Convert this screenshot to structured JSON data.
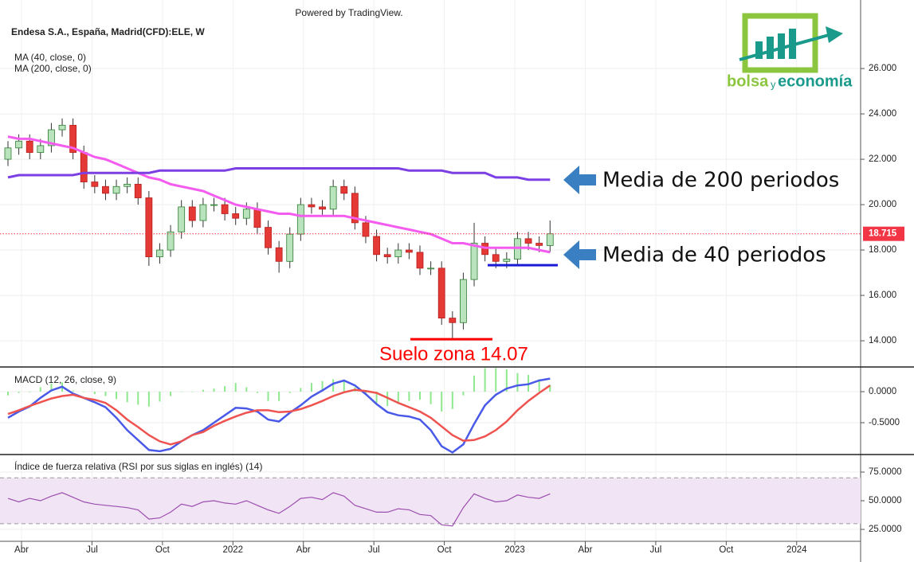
{
  "chart_data": [
    {
      "type": "candlestick",
      "title": "Endesa S.A., España, Madrid(CFD):ELE, W",
      "header": "Powered by TradingView.",
      "x": [
        0,
        2,
        4,
        6,
        8,
        10,
        12,
        14,
        16,
        18,
        20,
        22,
        24,
        26,
        28,
        30,
        32,
        34,
        36,
        38,
        40,
        42,
        44,
        46,
        48,
        50,
        52,
        54,
        56,
        58,
        60,
        62,
        64,
        66,
        68,
        70,
        72,
        74,
        76,
        78,
        80,
        82,
        84,
        86,
        88,
        90,
        92,
        94,
        96,
        98,
        100
      ],
      "open": [
        22.0,
        22.5,
        22.8,
        22.3,
        22.6,
        23.3,
        23.5,
        22.3,
        21.0,
        20.8,
        20.5,
        20.8,
        20.9,
        20.3,
        17.7,
        18.0,
        18.8,
        19.9,
        19.3,
        20.0,
        20.0,
        19.6,
        19.4,
        19.8,
        19.0,
        18.1,
        17.5,
        18.7,
        20.0,
        19.9,
        19.8,
        20.8,
        20.5,
        19.2,
        18.6,
        17.8,
        17.7,
        18.0,
        17.9,
        17.2,
        17.2,
        15.0,
        14.8,
        16.7,
        18.3,
        17.8,
        17.5,
        17.6,
        18.5,
        18.3,
        18.2
      ],
      "high": [
        22.8,
        23.1,
        23.1,
        22.9,
        23.6,
        23.8,
        23.8,
        22.6,
        21.3,
        21.1,
        21.1,
        21.2,
        21.2,
        20.6,
        18.3,
        19.1,
        20.2,
        20.2,
        20.3,
        20.3,
        20.3,
        19.9,
        20.1,
        20.1,
        19.3,
        18.4,
        19.0,
        20.3,
        20.3,
        20.2,
        21.1,
        21.1,
        20.8,
        19.5,
        18.9,
        18.1,
        18.3,
        18.3,
        18.2,
        17.5,
        17.5,
        15.3,
        17.0,
        19.2,
        18.6,
        18.1,
        17.9,
        18.8,
        18.8,
        18.6,
        19.3
      ],
      "low": [
        21.7,
        22.2,
        22.0,
        22.0,
        22.3,
        23.0,
        22.0,
        20.7,
        20.5,
        20.2,
        20.2,
        20.5,
        20.0,
        17.3,
        17.4,
        17.7,
        18.5,
        19.0,
        19.0,
        19.7,
        19.3,
        19.1,
        19.1,
        18.7,
        17.8,
        17.0,
        17.2,
        18.4,
        19.6,
        19.5,
        19.5,
        20.2,
        18.9,
        18.3,
        17.5,
        17.4,
        17.4,
        17.6,
        16.9,
        16.9,
        14.7,
        14.1,
        14.5,
        16.4,
        17.5,
        17.2,
        17.2,
        17.3,
        18.0,
        17.9,
        17.9
      ],
      "close": [
        22.5,
        22.8,
        22.3,
        22.6,
        23.3,
        23.5,
        22.3,
        21.0,
        20.8,
        20.5,
        20.8,
        20.9,
        20.3,
        17.7,
        18.0,
        18.8,
        19.9,
        19.3,
        20.0,
        20.0,
        19.6,
        19.4,
        19.8,
        19.0,
        18.1,
        17.5,
        18.7,
        20.0,
        19.9,
        19.8,
        20.8,
        20.5,
        19.2,
        18.6,
        17.8,
        17.7,
        18.0,
        17.9,
        17.2,
        17.2,
        15.0,
        14.8,
        16.7,
        18.3,
        17.8,
        17.5,
        17.6,
        18.5,
        18.3,
        18.2,
        18.715
      ],
      "up_color": "#b9e3bd",
      "down_color": "#e53935",
      "series": [
        {
          "name": "MA (40, close, 0)",
          "color": "#f45cf0",
          "values": [
            23.0,
            22.9,
            22.9,
            22.8,
            22.7,
            22.6,
            22.5,
            22.3,
            22.1,
            22.0,
            21.8,
            21.6,
            21.4,
            21.2,
            21.1,
            20.9,
            20.8,
            20.7,
            20.6,
            20.4,
            20.2,
            20.0,
            19.9,
            19.8,
            19.7,
            19.6,
            19.6,
            19.5,
            19.5,
            19.5,
            19.5,
            19.5,
            19.4,
            19.3,
            19.2,
            19.1,
            19.0,
            18.9,
            18.8,
            18.7,
            18.5,
            18.3,
            18.3,
            18.2,
            18.1,
            18.1,
            18.1,
            18.1,
            18.1,
            18.0,
            17.9
          ]
        },
        {
          "name": "MA (200, close, 0)",
          "color": "#7b3fe4",
          "values": [
            21.2,
            21.3,
            21.3,
            21.3,
            21.3,
            21.3,
            21.3,
            21.4,
            21.4,
            21.4,
            21.4,
            21.4,
            21.4,
            21.4,
            21.5,
            21.5,
            21.5,
            21.5,
            21.5,
            21.5,
            21.5,
            21.6,
            21.6,
            21.6,
            21.6,
            21.6,
            21.6,
            21.6,
            21.6,
            21.6,
            21.6,
            21.6,
            21.6,
            21.6,
            21.6,
            21.6,
            21.6,
            21.5,
            21.5,
            21.5,
            21.5,
            21.4,
            21.4,
            21.4,
            21.4,
            21.2,
            21.2,
            21.2,
            21.1,
            21.1,
            21.1
          ]
        }
      ],
      "last_price": 18.715,
      "last_price_color": "#f23645",
      "support": {
        "value": 17.33,
        "color": "#1a1ad6"
      },
      "floor": {
        "value": 14.07,
        "label": "Suelo zona 14.07",
        "color": "#ff0000"
      },
      "annotations": [
        "Media de 200 periodos",
        "Media de 40 periodos"
      ],
      "logo": [
        "bolsa",
        "y",
        "economía"
      ],
      "xlim": [
        0,
        157
      ],
      "ylim": [
        12.88,
        29.02
      ],
      "yticks": [
        {
          "value": 14,
          "label": "14.000"
        },
        {
          "value": 16,
          "label": "16.000"
        },
        {
          "value": 18,
          "label": "18.000"
        },
        {
          "value": 20,
          "label": "20.000"
        },
        {
          "value": 22,
          "label": "22.000"
        },
        {
          "value": 24,
          "label": "24.000"
        },
        {
          "value": 26,
          "label": "26.000"
        }
      ],
      "grid": true
    },
    {
      "type": "macd",
      "title": "MACD (12, 26, close, 9)",
      "x": [
        0,
        2,
        4,
        6,
        8,
        10,
        12,
        14,
        16,
        18,
        20,
        22,
        24,
        26,
        28,
        30,
        32,
        34,
        36,
        38,
        40,
        42,
        44,
        46,
        48,
        50,
        52,
        54,
        56,
        58,
        60,
        62,
        64,
        66,
        68,
        70,
        72,
        74,
        76,
        78,
        80,
        82,
        84,
        86,
        88,
        90,
        92,
        94,
        96,
        98,
        100
      ],
      "histogram": {
        "color": "#8ee88e",
        "values": [
          -0.06,
          -0.02,
          -0.01,
          0.07,
          0.13,
          0.15,
          0.02,
          0,
          -0.04,
          -0.07,
          -0.12,
          -0.17,
          -0.21,
          -0.24,
          -0.16,
          -0.07,
          0,
          0,
          0.03,
          0.05,
          0.09,
          0.14,
          0.07,
          -0.02,
          -0.15,
          -0.15,
          -0.02,
          0.06,
          0.14,
          0.17,
          0.2,
          0.19,
          0.07,
          -0.05,
          -0.18,
          -0.23,
          -0.2,
          -0.15,
          -0.13,
          -0.2,
          -0.32,
          -0.28,
          -0.06,
          0.26,
          0.38,
          0.38,
          0.36,
          0.3,
          0.27,
          0.2,
          0.11
        ]
      },
      "series": [
        {
          "color": "#4a5ae8",
          "values": [
            -0.42,
            -0.32,
            -0.24,
            -0.1,
            0.02,
            0.08,
            -0.03,
            -0.1,
            -0.17,
            -0.25,
            -0.42,
            -0.62,
            -0.78,
            -0.94,
            -0.96,
            -0.92,
            -0.8,
            -0.7,
            -0.62,
            -0.5,
            -0.38,
            -0.26,
            -0.27,
            -0.32,
            -0.45,
            -0.48,
            -0.34,
            -0.22,
            -0.08,
            0.02,
            0.13,
            0.18,
            0.1,
            -0.04,
            -0.2,
            -0.33,
            -0.38,
            -0.4,
            -0.45,
            -0.62,
            -0.88,
            -0.98,
            -0.85,
            -0.52,
            -0.22,
            -0.05,
            0.05,
            0.1,
            0.12,
            0.18,
            0.21
          ]
        },
        {
          "color": "#ef5350",
          "values": [
            -0.36,
            -0.3,
            -0.23,
            -0.17,
            -0.11,
            -0.07,
            -0.05,
            -0.1,
            -0.13,
            -0.18,
            -0.3,
            -0.45,
            -0.57,
            -0.7,
            -0.8,
            -0.85,
            -0.8,
            -0.7,
            -0.65,
            -0.55,
            -0.47,
            -0.4,
            -0.34,
            -0.3,
            -0.3,
            -0.33,
            -0.32,
            -0.28,
            -0.22,
            -0.15,
            -0.07,
            -0.01,
            0.03,
            0.01,
            -0.02,
            -0.1,
            -0.18,
            -0.25,
            -0.32,
            -0.42,
            -0.56,
            -0.7,
            -0.79,
            -0.78,
            -0.72,
            -0.62,
            -0.48,
            -0.3,
            -0.15,
            -0.02,
            0.1
          ]
        }
      ],
      "xlim": [
        0,
        157
      ],
      "ylim": [
        -1.0,
        0.385
      ],
      "yticks": [
        {
          "value": -0.5,
          "label": "-0.5000"
        },
        {
          "value": 0,
          "label": "0.0000"
        }
      ]
    },
    {
      "type": "rsi",
      "title": "Índice de fuerza relativa (RSI por sus siglas en inglés) (14)",
      "x": [
        0,
        2,
        4,
        6,
        8,
        10,
        12,
        14,
        16,
        18,
        20,
        22,
        24,
        26,
        28,
        30,
        32,
        34,
        36,
        38,
        40,
        42,
        44,
        46,
        48,
        50,
        52,
        54,
        56,
        58,
        60,
        62,
        64,
        66,
        68,
        70,
        72,
        74,
        76,
        78,
        80,
        82,
        84,
        86,
        88,
        90,
        92,
        94,
        96,
        98,
        100
      ],
      "values": [
        52,
        49,
        52,
        50,
        54,
        57,
        53,
        49,
        47,
        46,
        45,
        44,
        42,
        34,
        35,
        40,
        47,
        45,
        49,
        50,
        48,
        47,
        50,
        46,
        42,
        39,
        45,
        52,
        53,
        51,
        57,
        54,
        46,
        43,
        40,
        40,
        43,
        42,
        38,
        37,
        29,
        28,
        44,
        56,
        52,
        49,
        50,
        55,
        53,
        52,
        56
      ],
      "color": "#9c4fb0",
      "band": [
        30,
        70
      ],
      "band_color": "#f1e4f4",
      "xlim": [
        0,
        157
      ],
      "ylim": [
        14.6,
        89.6
      ],
      "yticks": [
        {
          "value": 25,
          "label": "25.0000"
        },
        {
          "value": 50,
          "label": "50.0000"
        },
        {
          "value": 75,
          "label": "75.0000"
        }
      ],
      "xticks": [
        {
          "value": 2.5,
          "label": "Abr"
        },
        {
          "value": 15.5,
          "label": "Jul"
        },
        {
          "value": 28.5,
          "label": "Oct"
        },
        {
          "value": 41.5,
          "label": "2022"
        },
        {
          "value": 54.5,
          "label": "Abr"
        },
        {
          "value": 67.5,
          "label": "Jul"
        },
        {
          "value": 80.5,
          "label": "Oct"
        },
        {
          "value": 93.5,
          "label": "2023"
        },
        {
          "value": 106.5,
          "label": "Abr"
        },
        {
          "value": 119.5,
          "label": "Jul"
        },
        {
          "value": 132.5,
          "label": "Oct"
        },
        {
          "value": 145.5,
          "label": "2024"
        }
      ]
    }
  ]
}
